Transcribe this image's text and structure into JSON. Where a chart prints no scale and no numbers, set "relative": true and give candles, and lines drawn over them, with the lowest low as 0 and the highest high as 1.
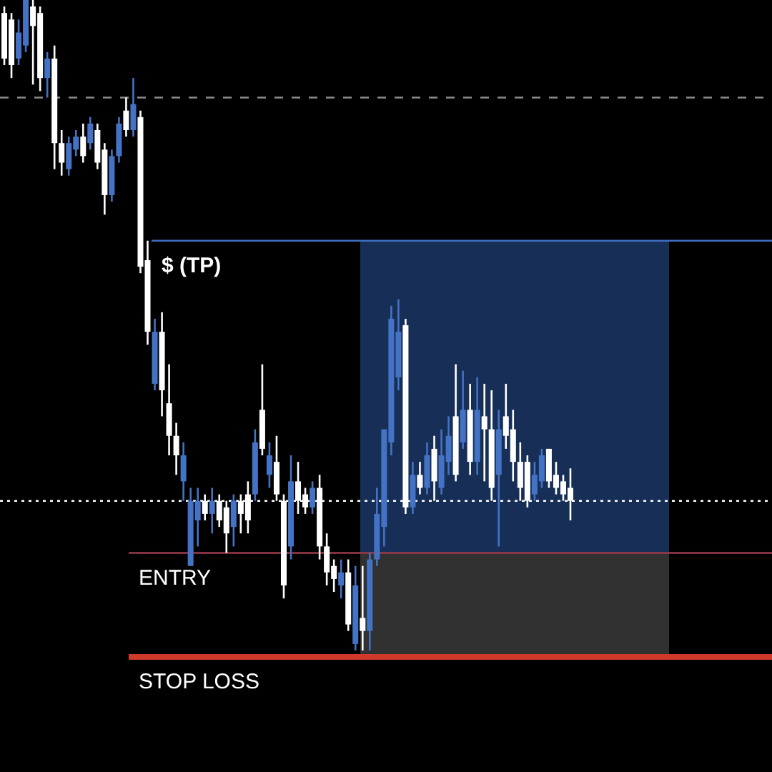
{
  "chart_data": {
    "type": "candlestick",
    "relative": true,
    "categories": [
      null,
      null,
      null,
      null,
      null,
      null,
      null,
      null,
      null,
      null,
      null,
      null,
      null,
      null,
      null,
      null,
      null,
      null,
      null,
      null,
      null,
      null,
      null,
      null,
      null,
      null,
      null,
      null,
      null,
      null,
      null,
      null,
      null,
      null,
      null,
      null,
      null,
      null,
      null,
      null,
      null,
      null,
      null,
      null,
      null,
      null,
      null,
      null,
      null,
      null,
      null,
      null,
      null,
      null,
      null,
      null,
      null,
      null,
      null,
      null,
      null,
      null,
      null,
      null,
      null,
      null,
      null,
      null,
      null,
      null,
      null,
      null,
      null,
      null,
      null,
      null,
      null,
      null,
      null,
      null
    ],
    "ohlc": [
      [
        0.98,
        0.99,
        0.9,
        0.91
      ],
      [
        0.97,
        0.98,
        0.88,
        0.9
      ],
      [
        0.91,
        0.97,
        0.9,
        0.95
      ],
      [
        0.93,
        1,
        0.92,
        1
      ],
      [
        0.99,
        1,
        0.87,
        0.96
      ],
      [
        0.98,
        0.99,
        0.86,
        0.88
      ],
      [
        0.88,
        0.92,
        0.85,
        0.91
      ],
      [
        0.91,
        0.93,
        0.74,
        0.78
      ],
      [
        0.78,
        0.8,
        0.73,
        0.75
      ],
      [
        0.74,
        0.79,
        0.73,
        0.78
      ],
      [
        0.77,
        0.8,
        0.76,
        0.79
      ],
      [
        0.79,
        0.81,
        0.75,
        0.76
      ],
      [
        0.78,
        0.82,
        0.77,
        0.81
      ],
      [
        0.8,
        0.81,
        0.74,
        0.75
      ],
      [
        0.77,
        0.78,
        0.67,
        0.7
      ],
      [
        0.7,
        0.77,
        0.69,
        0.76
      ],
      [
        0.76,
        0.82,
        0.75,
        0.81
      ],
      [
        0.83,
        0.85,
        0.79,
        0.8
      ],
      [
        0.8,
        0.88,
        0.79,
        0.84
      ],
      [
        0.82,
        0.83,
        0.58,
        0.59
      ],
      [
        0.6,
        0.63,
        0.47,
        0.49
      ],
      [
        0.41,
        0.51,
        0.4,
        0.49
      ],
      [
        0.49,
        0.52,
        0.36,
        0.4
      ],
      [
        0.38,
        0.44,
        0.3,
        0.33
      ],
      [
        0.33,
        0.35,
        0.27,
        0.3
      ],
      [
        0.26,
        0.32,
        0.23,
        0.3
      ],
      [
        0.13,
        0.25,
        0.13,
        0.23
      ],
      [
        0.2,
        0.25,
        0.16,
        0.23
      ],
      [
        0.23,
        0.24,
        0.2,
        0.21
      ],
      [
        0.21,
        0.25,
        0.18,
        0.23
      ],
      [
        0.23,
        0.24,
        0.19,
        0.2
      ],
      [
        0.22,
        0.23,
        0.15,
        0.18
      ],
      [
        0.19,
        0.24,
        0.16,
        0.23
      ],
      [
        0.23,
        0.24,
        0.18,
        0.21
      ],
      [
        0.24,
        0.26,
        0.18,
        0.2
      ],
      [
        0.24,
        0.34,
        0.23,
        0.32
      ],
      [
        0.37,
        0.44,
        0.3,
        0.31
      ],
      [
        0.27,
        0.32,
        0.25,
        0.3
      ],
      [
        0.29,
        0.33,
        0.23,
        0.24
      ],
      [
        0.23,
        0.24,
        0.08,
        0.1
      ],
      [
        0.16,
        0.3,
        0.14,
        0.26
      ],
      [
        0.26,
        0.29,
        0.21,
        0.23
      ],
      [
        0.24,
        0.25,
        0.21,
        0.22
      ],
      [
        0.22,
        0.26,
        0.21,
        0.25
      ],
      [
        0.25,
        0.27,
        0.14,
        0.16
      ],
      [
        0.16,
        0.18,
        0.1,
        0.12
      ],
      [
        0.13,
        0.14,
        0.09,
        0.11
      ],
      [
        0.1,
        0.14,
        0.08,
        0.12
      ],
      [
        0.12,
        0.14,
        0.03,
        0.04
      ],
      [
        0.01,
        0.13,
        0,
        0.1
      ],
      [
        0.05,
        0.13,
        0,
        0.03
      ],
      [
        0.03,
        0.15,
        0,
        0.14
      ],
      [
        0.14,
        0.25,
        0.13,
        0.21
      ],
      [
        0.19,
        0.34,
        0.16,
        0.34
      ],
      [
        0.32,
        0.53,
        0.3,
        0.51
      ],
      [
        0.42,
        0.54,
        0.4,
        0.49
      ],
      [
        0.5,
        0.51,
        0.21,
        0.22
      ],
      [
        0.22,
        0.29,
        0.21,
        0.27
      ],
      [
        0.27,
        0.29,
        0.24,
        0.25
      ],
      [
        0.25,
        0.32,
        0.24,
        0.3
      ],
      [
        0.31,
        0.33,
        0.23,
        0.26
      ],
      [
        0.25,
        0.34,
        0.24,
        0.3
      ],
      [
        0.29,
        0.36,
        0.27,
        0.33
      ],
      [
        0.36,
        0.44,
        0.26,
        0.27
      ],
      [
        0.32,
        0.43,
        0.31,
        0.37
      ],
      [
        0.37,
        0.41,
        0.27,
        0.29
      ],
      [
        0.29,
        0.42,
        0.27,
        0.37
      ],
      [
        0.36,
        0.41,
        0.26,
        0.34
      ],
      [
        0.34,
        0.4,
        0.23,
        0.25
      ],
      [
        0.27,
        0.37,
        0.16,
        0.34
      ],
      [
        0.36,
        0.41,
        0.31,
        0.33
      ],
      [
        0.34,
        0.37,
        0.26,
        0.29
      ],
      [
        0.29,
        0.32,
        0.23,
        0.25
      ],
      [
        0.29,
        0.3,
        0.22,
        0.23
      ],
      [
        0.24,
        0.29,
        0.23,
        0.27
      ],
      [
        0.26,
        0.31,
        0.25,
        0.3
      ],
      [
        0.31,
        0.31,
        0.25,
        0.26
      ],
      [
        0.27,
        0.29,
        0.24,
        0.25
      ],
      [
        0.26,
        0.27,
        0.23,
        0.24
      ],
      [
        0.25,
        0.28,
        0.2,
        0.23
      ]
    ],
    "colors": [
      "#ffffff",
      "#ffffff",
      "#4472c4",
      "#4472c4",
      "#ffffff",
      "#ffffff",
      "#4472c4",
      "#ffffff",
      "#ffffff",
      "#4472c4",
      "#4472c4",
      "#ffffff",
      "#4472c4",
      "#ffffff",
      "#ffffff",
      "#4472c4",
      "#4472c4",
      "#ffffff",
      "#4472c4",
      "#ffffff",
      "#ffffff",
      "#4472c4",
      "#ffffff",
      "#ffffff",
      "#ffffff",
      "#4472c4",
      "#4472c4",
      "#4472c4",
      "#ffffff",
      "#4472c4",
      "#ffffff",
      "#ffffff",
      "#4472c4",
      "#ffffff",
      "#ffffff",
      "#4472c4",
      "#ffffff",
      "#4472c4",
      "#ffffff",
      "#ffffff",
      "#4472c4",
      "#ffffff",
      "#ffffff",
      "#4472c4",
      "#ffffff",
      "#ffffff",
      "#ffffff",
      "#4472c4",
      "#ffffff",
      "#4472c4",
      "#ffffff",
      "#4472c4",
      "#4472c4",
      "#4472c4",
      "#4472c4",
      "#4472c4",
      "#ffffff",
      "#4472c4",
      "#ffffff",
      "#4472c4",
      "#ffffff",
      "#4472c4",
      "#4472c4",
      "#ffffff",
      "#4472c4",
      "#ffffff",
      "#4472c4",
      "#ffffff",
      "#ffffff",
      "#4472c4",
      "#ffffff",
      "#ffffff",
      "#ffffff",
      "#ffffff",
      "#4472c4",
      "#4472c4",
      "#ffffff",
      "#ffffff",
      "#ffffff",
      "#ffffff"
    ],
    "ref_lines": [
      {
        "axis": "y",
        "value": 0.85,
        "color": "#8a8a8a",
        "line_style": "dashed"
      },
      {
        "axis": "y",
        "value": 0.63,
        "label": "$ (TP)",
        "color": "#3f6fc4",
        "line_style": "solid"
      },
      {
        "axis": "y",
        "value": 0.23,
        "color": "#ffffff",
        "line_style": "dotted"
      },
      {
        "axis": "y",
        "value": 0.15,
        "label": "ENTRY",
        "color": "#9b3a4a",
        "line_style": "solid"
      },
      {
        "axis": "y",
        "value": -0.01,
        "label": "STOP LOSS",
        "color": "#d03a2a",
        "line_style": "solid"
      }
    ],
    "bands": [
      {
        "axis": "y",
        "from": 0.15,
        "to": 0.63,
        "color": "#1b3766"
      },
      {
        "axis": "y",
        "from": -0.01,
        "to": 0.15,
        "color": "#3a3a3a"
      }
    ],
    "line_style": "solid"
  }
}
